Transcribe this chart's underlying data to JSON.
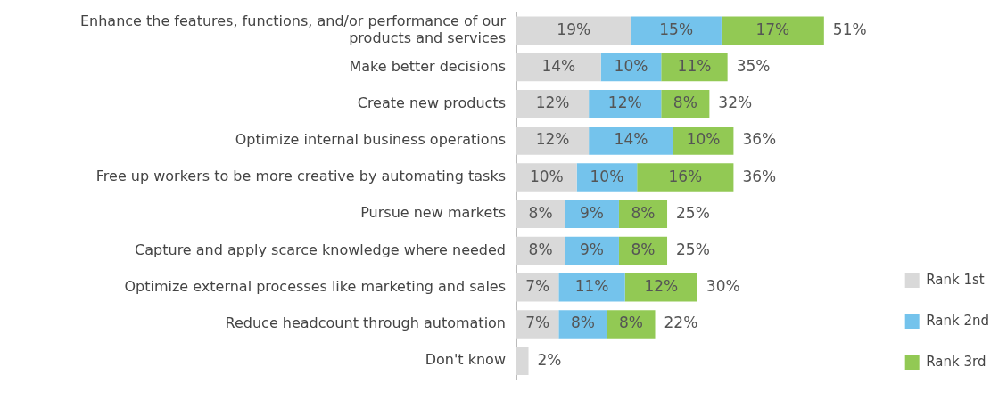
{
  "chart_data": {
    "type": "bar",
    "orientation": "horizontal",
    "stacked": true,
    "legend": "bottom right",
    "grid": false,
    "categories": [
      "Enhance the features, functions, and/or performance of our products and services",
      "Make better decisions",
      "Create new products",
      "Optimize internal business operations",
      "Free up workers to be more creative by automating tasks",
      "Pursue new markets",
      "Capture and apply scarce knowledge where needed",
      "Optimize external processes like marketing and sales",
      "Reduce headcount through automation",
      "Don't know"
    ],
    "series": [
      {
        "name": "Rank 1st",
        "color": "#d9d9d9",
        "values": [
          19,
          14,
          12,
          12,
          10,
          8,
          8,
          7,
          7,
          2
        ],
        "value_labels": [
          "19%",
          "14%",
          "12%",
          "12%",
          "10%",
          "8%",
          "8%",
          "7%",
          "7%",
          null
        ]
      },
      {
        "name": "Rank 2nd",
        "color": "#74c3ec",
        "values": [
          15,
          10,
          12,
          14,
          10,
          9,
          9,
          11,
          8,
          null
        ],
        "value_labels": [
          "15%",
          "10%",
          "12%",
          "14%",
          "10%",
          "9%",
          "9%",
          "11%",
          "8%",
          null
        ]
      },
      {
        "name": "Rank 3rd",
        "color": "#92c954",
        "values": [
          17,
          11,
          8,
          10,
          16,
          8,
          8,
          12,
          8,
          null
        ],
        "value_labels": [
          "17%",
          "11%",
          "8%",
          "10%",
          "16%",
          "8%",
          "8%",
          "12%",
          "8%",
          null
        ]
      }
    ],
    "totals": [
      "51%",
      "35%",
      "32%",
      "36%",
      "36%",
      "25%",
      "25%",
      "30%",
      "22%",
      "2%"
    ]
  }
}
